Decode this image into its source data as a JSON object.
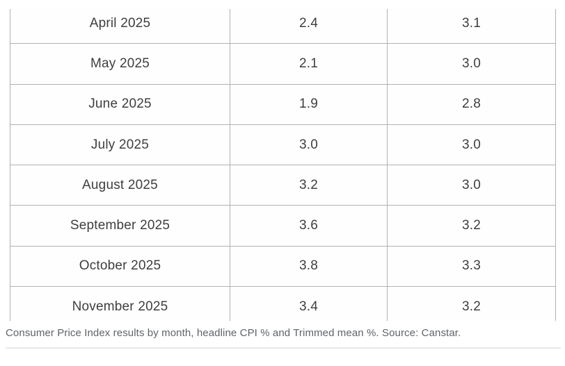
{
  "chart_data": {
    "type": "table",
    "columns": [
      "Month",
      "Headline CPI %",
      "Trimmed mean %"
    ],
    "rows": [
      [
        "April 2025",
        "2.4",
        "3.1"
      ],
      [
        "May 2025",
        "2.1",
        "3.0"
      ],
      [
        "June 2025",
        "1.9",
        "2.8"
      ],
      [
        "July 2025",
        "3.0",
        "3.0"
      ],
      [
        "August 2025",
        "3.2",
        "3.0"
      ],
      [
        "September 2025",
        "3.6",
        "3.2"
      ],
      [
        "October 2025",
        "3.8",
        "3.3"
      ],
      [
        "November 2025",
        "3.4",
        "3.2"
      ]
    ],
    "title": "Consumer Price Index results by month",
    "source": "Canstar",
    "layout_hints": {
      "grid": "full-borders",
      "header_row_visible": false,
      "top_edge_clipped": true,
      "bottom_edge_clipped": true
    }
  },
  "caption": {
    "text": "Consumer Price Index results by month, headline CPI % and Trimmed mean %. Source: Canstar."
  },
  "colors": {
    "table_border": "#b1b1b1",
    "table_text": "#3e3e3e",
    "caption_text": "#5f6368",
    "bottom_divider": "#e7e7e7",
    "background": "#ffffff"
  }
}
